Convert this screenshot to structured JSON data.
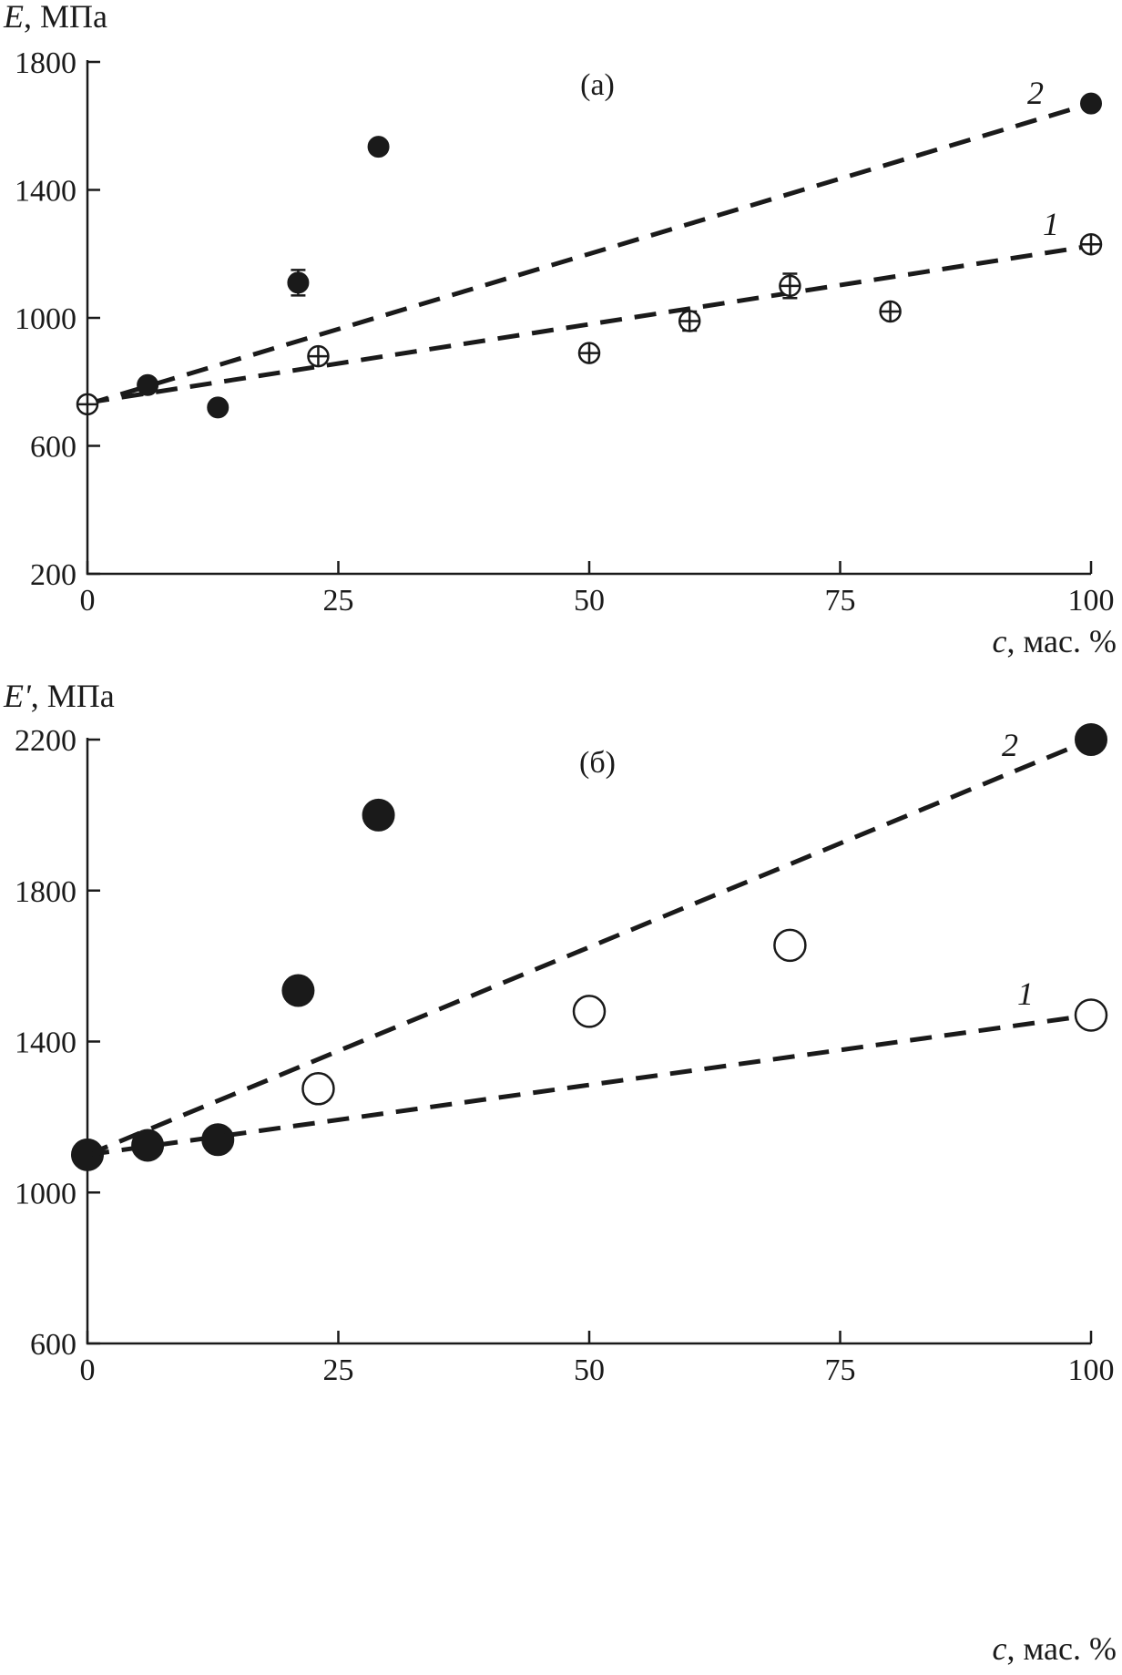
{
  "chart_data": [
    {
      "type": "scatter",
      "panel_label": "(а)",
      "ylabel_symbol": "E",
      "ylabel_unit": ", МПа",
      "xlabel_symbol": "c",
      "xlabel_unit": ", мас. %",
      "xlim": [
        0,
        100
      ],
      "ylim": [
        200,
        1800
      ],
      "xticks": [
        0,
        25,
        50,
        75,
        100
      ],
      "yticks": [
        200,
        600,
        1000,
        1400,
        1800
      ],
      "grid": false,
      "series": [
        {
          "name": "2",
          "marker": "filled",
          "error_bars": true,
          "points": [
            {
              "x": 0,
              "y": 730,
              "err": 10
            },
            {
              "x": 6,
              "y": 790,
              "err": 12
            },
            {
              "x": 13,
              "y": 720,
              "err": 22
            },
            {
              "x": 21,
              "y": 1110,
              "err": 40
            },
            {
              "x": 29,
              "y": 1535,
              "err": 12
            },
            {
              "x": 100,
              "y": 1670,
              "err": 15
            }
          ],
          "trend": {
            "x": [
              0,
              100
            ],
            "y": [
              730,
              1670
            ]
          }
        },
        {
          "name": "1",
          "marker": "open-crossed",
          "error_bars": true,
          "points": [
            {
              "x": 0,
              "y": 730,
              "err": 10
            },
            {
              "x": 23,
              "y": 880,
              "err": 15
            },
            {
              "x": 50,
              "y": 890,
              "err": 12
            },
            {
              "x": 60,
              "y": 990,
              "err": 30
            },
            {
              "x": 70,
              "y": 1100,
              "err": 38
            },
            {
              "x": 80,
              "y": 1020,
              "err": 12
            },
            {
              "x": 100,
              "y": 1230,
              "err": 15
            }
          ],
          "trend": {
            "x": [
              0,
              100
            ],
            "y": [
              735,
              1225
            ]
          }
        }
      ]
    },
    {
      "type": "scatter",
      "panel_label": "(б)",
      "ylabel_symbol": "E'",
      "ylabel_unit": ", МПа",
      "xlabel_symbol": "c",
      "xlabel_unit": ", мас. %",
      "xlim": [
        0,
        100
      ],
      "ylim": [
        600,
        2200
      ],
      "xticks": [
        0,
        25,
        50,
        75,
        100
      ],
      "yticks": [
        600,
        1000,
        1400,
        1800,
        2200
      ],
      "grid": false,
      "series": [
        {
          "name": "2",
          "marker": "filled",
          "error_bars": false,
          "points": [
            {
              "x": 0,
              "y": 1100
            },
            {
              "x": 6,
              "y": 1125
            },
            {
              "x": 13,
              "y": 1140
            },
            {
              "x": 21,
              "y": 1535
            },
            {
              "x": 29,
              "y": 2000
            },
            {
              "x": 100,
              "y": 2200
            }
          ],
          "trend": {
            "x": [
              0,
              100
            ],
            "y": [
              1100,
              2200
            ]
          }
        },
        {
          "name": "1",
          "marker": "open",
          "error_bars": false,
          "points": [
            {
              "x": 23,
              "y": 1275
            },
            {
              "x": 50,
              "y": 1480
            },
            {
              "x": 70,
              "y": 1655
            },
            {
              "x": 100,
              "y": 1470
            }
          ],
          "trend": {
            "x": [
              0,
              100
            ],
            "y": [
              1100,
              1470
            ]
          }
        }
      ]
    }
  ]
}
